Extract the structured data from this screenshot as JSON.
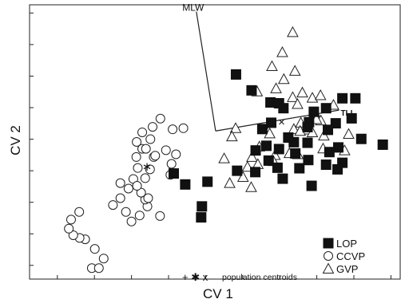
{
  "chart_data": {
    "type": "scatter",
    "title": "",
    "xlabel": "CV 1",
    "ylabel": "CV 2",
    "xlim": [
      0,
      100
    ],
    "ylim": [
      0,
      100
    ],
    "grid": false,
    "legend_position": "bottom-right",
    "series": [
      {
        "name": "LOP",
        "marker": "filled-square",
        "points": [
          [
            55.7,
            74.6
          ],
          [
            62.8,
            54.7
          ],
          [
            59.9,
            68.8
          ],
          [
            65.0,
            64.4
          ],
          [
            67.3,
            64.1
          ],
          [
            68.5,
            62.3
          ],
          [
            65.2,
            57.0
          ],
          [
            75.4,
            57.2
          ],
          [
            76.7,
            61.0
          ],
          [
            80.0,
            62.3
          ],
          [
            84.4,
            65.9
          ],
          [
            87.9,
            65.9
          ],
          [
            89.5,
            51.1
          ],
          [
            86.9,
            58.6
          ],
          [
            82.6,
            56.8
          ],
          [
            80.5,
            54.4
          ],
          [
            75.0,
            55.4
          ],
          [
            75.0,
            49.7
          ],
          [
            71.3,
            49.9
          ],
          [
            69.8,
            51.6
          ],
          [
            71.7,
            45.8
          ],
          [
            67.3,
            47.4
          ],
          [
            63.9,
            48.6
          ],
          [
            61.0,
            46.9
          ],
          [
            64.5,
            43.2
          ],
          [
            66.9,
            40.6
          ],
          [
            68.3,
            36.6
          ],
          [
            72.8,
            40.4
          ],
          [
            75.2,
            43.4
          ],
          [
            80.9,
            46.3
          ],
          [
            83.3,
            48.0
          ],
          [
            84.4,
            42.4
          ],
          [
            80.0,
            41.7
          ],
          [
            83.1,
            40.0
          ],
          [
            76.1,
            34.0
          ],
          [
            95.3,
            49.0
          ],
          [
            60.9,
            39.0
          ],
          [
            56.0,
            39.5
          ],
          [
            48.0,
            35.5
          ],
          [
            42.0,
            34.5
          ],
          [
            46.5,
            26.5
          ],
          [
            46.3,
            22.5
          ],
          [
            38.9,
            38.5
          ]
        ]
      },
      {
        "name": "CCVP",
        "marker": "open-circle",
        "points": [
          [
            35.3,
            58.5
          ],
          [
            33.2,
            55.5
          ],
          [
            32.6,
            51.0
          ],
          [
            30.4,
            47.5
          ],
          [
            28.8,
            44.5
          ],
          [
            29.2,
            40.5
          ],
          [
            28.0,
            36.5
          ],
          [
            26.7,
            33.0
          ],
          [
            24.5,
            29.5
          ],
          [
            22.5,
            27.0
          ],
          [
            26.0,
            24.5
          ],
          [
            27.5,
            21.0
          ],
          [
            29.7,
            23.2
          ],
          [
            31.8,
            26.5
          ],
          [
            31.2,
            29.0
          ],
          [
            30.1,
            31.5
          ],
          [
            29.0,
            34.0
          ],
          [
            31.2,
            36.8
          ],
          [
            32.5,
            40.0
          ],
          [
            33.5,
            44.5
          ],
          [
            31.4,
            47.5
          ],
          [
            28.9,
            50.0
          ],
          [
            30.4,
            53.5
          ],
          [
            33.9,
            45.0
          ],
          [
            32.0,
            29.5
          ],
          [
            35.2,
            23.0
          ],
          [
            36.8,
            47.0
          ],
          [
            38.6,
            54.6
          ],
          [
            41.5,
            55.0
          ],
          [
            39.5,
            45.5
          ],
          [
            38.3,
            42.0
          ],
          [
            38.0,
            38.0
          ],
          [
            24.5,
            35.0
          ],
          [
            17.6,
            11.0
          ],
          [
            20.0,
            7.5
          ],
          [
            15.0,
            14.5
          ],
          [
            13.5,
            15.0
          ],
          [
            11.8,
            16.0
          ],
          [
            10.6,
            18.4
          ],
          [
            11.2,
            21.7
          ],
          [
            13.4,
            24.5
          ],
          [
            16.8,
            4.0
          ],
          [
            18.7,
            4.0
          ]
        ]
      },
      {
        "name": "GVP",
        "marker": "open-triangle",
        "points": [
          [
            71.0,
            90.0
          ],
          [
            68.2,
            82.7
          ],
          [
            68.6,
            72.9
          ],
          [
            71.6,
            75.9
          ],
          [
            65.4,
            77.6
          ],
          [
            61.4,
            68.4
          ],
          [
            66.5,
            69.5
          ],
          [
            71.0,
            66.3
          ],
          [
            73.6,
            68.0
          ],
          [
            76.3,
            66.1
          ],
          [
            78.5,
            67.0
          ],
          [
            82.0,
            63.5
          ],
          [
            77.0,
            60.7
          ],
          [
            72.3,
            63.8
          ],
          [
            78.6,
            57.8
          ],
          [
            74.7,
            54.5
          ],
          [
            71.3,
            54.7
          ],
          [
            62.0,
            48.3
          ],
          [
            55.6,
            55.0
          ],
          [
            54.6,
            52.0
          ],
          [
            52.5,
            44.0
          ],
          [
            60.0,
            44.5
          ],
          [
            61.6,
            41.9
          ],
          [
            66.2,
            45.2
          ],
          [
            73.2,
            57.0
          ],
          [
            77.4,
            58.3
          ],
          [
            64.8,
            53.1
          ],
          [
            73.0,
            54.0
          ],
          [
            79.4,
            52.3
          ],
          [
            85.0,
            46.9
          ],
          [
            86.1,
            52.9
          ],
          [
            79.2,
            47.6
          ],
          [
            76.3,
            53.5
          ],
          [
            70.1,
            45.9
          ],
          [
            59.8,
            33.5
          ],
          [
            54.0,
            35.0
          ],
          [
            57.6,
            37.2
          ],
          [
            58.8,
            40.9
          ],
          [
            65.8,
            43.0
          ],
          [
            72.4,
            45.5
          ]
        ]
      }
    ],
    "centroids": [
      {
        "marker": "+",
        "x": 63.6,
        "y": 55.0
      },
      {
        "marker": "*",
        "x": 31.7,
        "y": 41.0
      },
      {
        "marker": "x",
        "x": 68.0,
        "y": 57.2
      }
    ],
    "biplot_vectors": [
      {
        "label": "MLW",
        "from": [
          50.2,
          54.0
        ],
        "to": [
          45.0,
          97.5
        ]
      },
      {
        "label": "TLL",
        "from": [
          50.2,
          54.0
        ],
        "to": [
          83.5,
          61.6
        ]
      }
    ],
    "legend": {
      "entries": [
        {
          "label": "LOP",
          "marker": "filled-square"
        },
        {
          "label": "CCVP",
          "marker": "open-circle"
        },
        {
          "label": "GVP",
          "marker": "open-triangle"
        }
      ],
      "centroid_symbols": "+ ✱ x",
      "centroid_label": "population centroids"
    }
  }
}
